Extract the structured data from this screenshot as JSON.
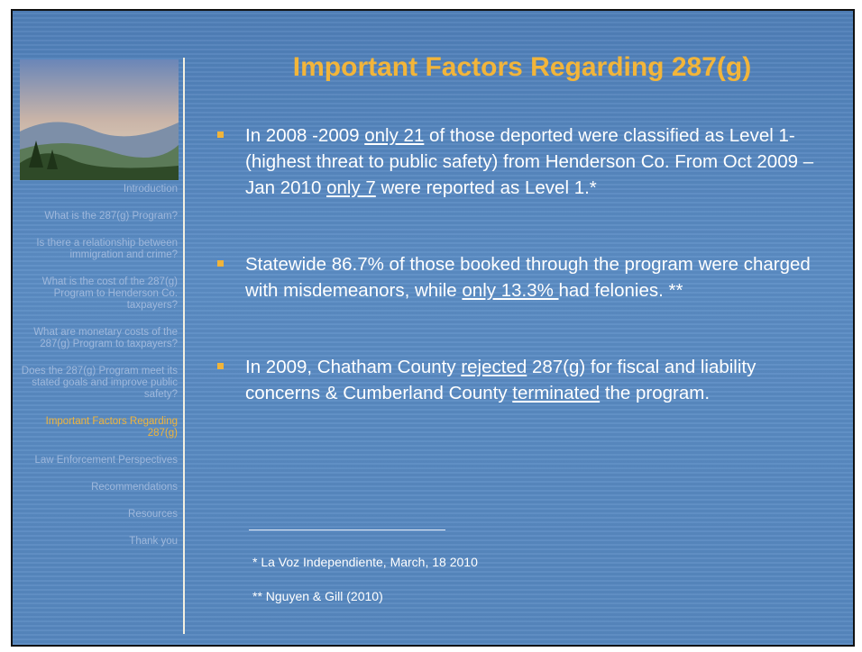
{
  "nav": [
    {
      "label": "Introduction"
    },
    {
      "label": "What is the 287(g) Program?"
    },
    {
      "label": "Is there a relationship between immigration and crime?"
    },
    {
      "label": "What is the cost of the 287(g) Program to Henderson Co. taxpayers?"
    },
    {
      "label": "What are monetary costs of the 287(g) Program to taxpayers?"
    },
    {
      "label": "Does the 287(g) Program meet its stated goals and improve public safety?"
    },
    {
      "label": "Important Factors Regarding 287(g)",
      "current": true
    },
    {
      "label": "Law Enforcement Perspectives"
    },
    {
      "label": "Recommendations"
    },
    {
      "label": "Resources"
    },
    {
      "label": "Thank you"
    }
  ],
  "title": "Important Factors Regarding 287(g)",
  "bullets": [
    [
      {
        "text": "In 2008 -2009 "
      },
      {
        "text": "only 21",
        "underline": true
      },
      {
        "text": " of those deported were classified as Level 1- (highest threat to public safety) from Henderson Co.  From Oct 2009 – Jan 2010 "
      },
      {
        "text": "only 7",
        "underline": true
      },
      {
        "text": " were reported as Level 1.*"
      }
    ],
    [
      {
        "text": "Statewide  86.7% of those booked through the program were charged with misdemeanors, while "
      },
      {
        "text": "only 13.3% ",
        "underline": true
      },
      {
        "text": "had felonies. **"
      }
    ],
    [
      {
        "text": "In 2009, Chatham County "
      },
      {
        "text": "rejected",
        "underline": true
      },
      {
        "text": " 287(g) for fiscal and liability concerns & Cumberland County "
      },
      {
        "text": "terminated",
        "underline": true
      },
      {
        "text": " the program."
      }
    ]
  ],
  "footnotes": [
    "* La Voz Independiente, March, 18  2010",
    "** Nguyen & Gill (2010)"
  ]
}
